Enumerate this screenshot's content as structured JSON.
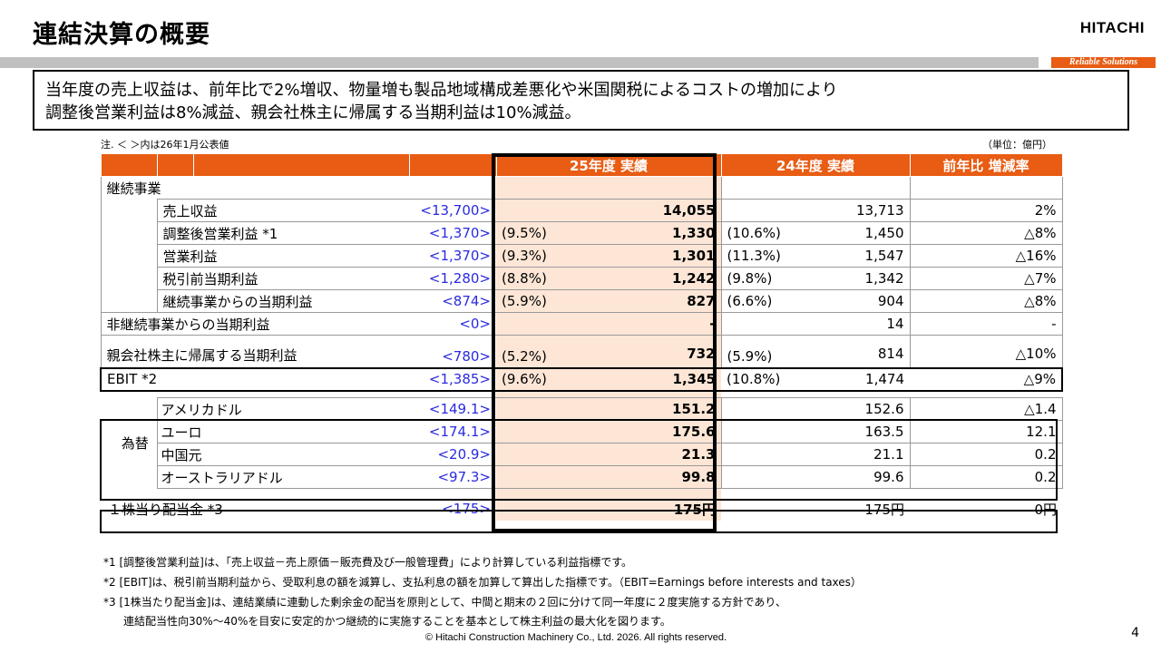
{
  "header": {
    "title": "連結決算の概要",
    "logo": "HITACHI",
    "tagline": "Reliable Solutions"
  },
  "summary": {
    "line1": "当年度の売上収益は、前年比で2%増収、物量増も製品地域構成差悪化や米国関税によるコストの増加により",
    "line2": "調整後営業利益は8%減益、親会社株主に帰属する当期利益は10%減益。"
  },
  "notes": {
    "left": "注. ＜ ＞内は26年1月公表値",
    "unit": "（単位：億円）"
  },
  "table": {
    "headers": [
      "25年度 実績",
      "24年度 実績",
      "前年比 増減率"
    ],
    "section_continuing": "継続事業",
    "rows": [
      {
        "label": "売上収益",
        "forecast": "<13,700>",
        "pct25": "",
        "v25": "14,055",
        "pct24": "",
        "v24": "13,713",
        "change": "2%"
      },
      {
        "label": "調整後営業利益 *1",
        "forecast": "<1,370>",
        "pct25": "(9.5%)",
        "v25": "1,330",
        "pct24": "(10.6%)",
        "v24": "1,450",
        "change": "△8%"
      },
      {
        "label": "営業利益",
        "forecast": "<1,370>",
        "pct25": "(9.3%)",
        "v25": "1,301",
        "pct24": "(11.3%)",
        "v24": "1,547",
        "change": "△16%"
      },
      {
        "label": "税引前当期利益",
        "forecast": "<1,280>",
        "pct25": "(8.8%)",
        "v25": "1,242",
        "pct24": "(9.8%)",
        "v24": "1,342",
        "change": "△7%"
      },
      {
        "label": "継続事業からの当期利益",
        "forecast": "<874>",
        "pct25": "(5.9%)",
        "v25": "827",
        "pct24": "(6.6%)",
        "v24": "904",
        "change": "△8%"
      }
    ],
    "discontinued": {
      "label": "非継続事業からの当期利益",
      "forecast": "<0>",
      "v25": "-",
      "v24": "14",
      "change": "-"
    },
    "parent": {
      "label": "親会社株主に帰属する当期利益",
      "forecast": "<780>",
      "pct25": "(5.2%)",
      "v25": "732",
      "pct24": "(5.9%)",
      "v24": "814",
      "change": "△10%"
    },
    "ebit": {
      "label": "EBIT *2",
      "forecast": "<1,385>",
      "pct25": "(9.6%)",
      "v25": "1,345",
      "pct24": "(10.8%)",
      "v24": "1,474",
      "change": "△9%"
    },
    "fx_label": "為替",
    "fx": [
      {
        "label": "アメリカドル",
        "forecast": "<149.1>",
        "v25": "151.2",
        "v24": "152.6",
        "change": "△1.4"
      },
      {
        "label": "ユーロ",
        "forecast": "<174.1>",
        "v25": "175.6",
        "v24": "163.5",
        "change": "12.1"
      },
      {
        "label": "中国元",
        "forecast": "<20.9>",
        "v25": "21.3",
        "v24": "21.1",
        "change": "0.2"
      },
      {
        "label": "オーストラリアドル",
        "forecast": "<97.3>",
        "v25": "99.8",
        "v24": "99.6",
        "change": "0.2"
      }
    ],
    "dividend": {
      "label": "１株当り配当金 *3",
      "forecast": "<175>",
      "v25": "175円",
      "v24": "175円",
      "change": "0円"
    }
  },
  "footnotes": [
    "*1 [調整後営業利益]は、「売上収益－売上原価－販売費及び一般管理費」により計算している利益指標です。",
    "*2 [EBIT]は、税引前当期利益から、受取利息の額を減算し、支払利息の額を加算して算出した指標です。（EBIT=Earnings before interests and taxes）",
    "*3 [1株当たり配当金]は、連結業績に連動した剰余金の配当を原則として、中間と期末の２回に分けて同一年度に２度実施する方針であり、",
    "連結配当性向30%～40%を目安に安定的かつ継続的に実施することを基本として株主利益の最大化を図ります。"
  ],
  "footer": "© Hitachi Construction Machinery Co., Ltd. 2026. All rights reserved.",
  "page_number": "4",
  "colors": {
    "accent": "#e85c14",
    "highlight": "#fde6d6",
    "forecast_text": "#2a2ae0"
  }
}
